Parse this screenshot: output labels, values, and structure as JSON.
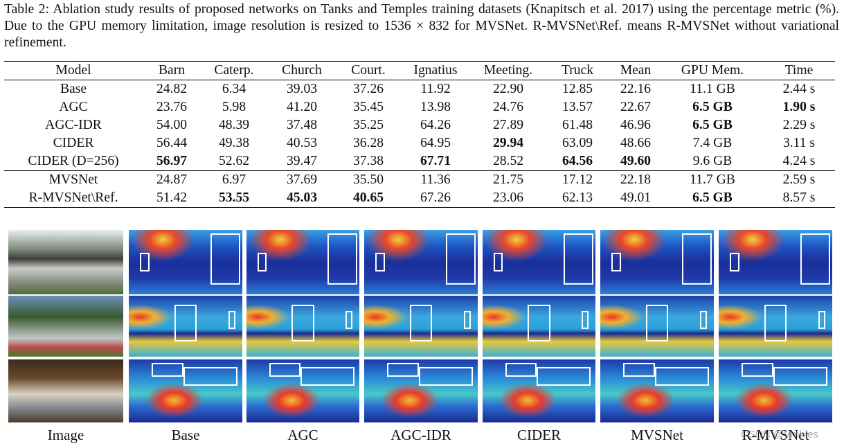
{
  "caption": "Table 2: Ablation study results of proposed networks on Tanks and Temples training datasets (Knapitsch et al. 2017) using the percentage metric (%). Due to the GPU memory limitation, image resolution is resized to 1536 × 832 for MVSNet. R-MVSNet\\Ref. means R-MVSNet without variational refinement.",
  "table": {
    "header": [
      "Model",
      "Barn",
      "Caterp.",
      "Church",
      "Court.",
      "Ignatius",
      "Meeting.",
      "Truck",
      "Mean",
      "GPU Mem.",
      "Time"
    ],
    "rows": [
      [
        "Base",
        "24.82",
        "6.34",
        "39.03",
        "37.26",
        "11.92",
        "22.90",
        "12.85",
        "22.16",
        "11.1 GB",
        "2.44 s"
      ],
      [
        "AGC",
        "23.76",
        "5.98",
        "41.20",
        "35.45",
        "13.98",
        "24.76",
        "13.57",
        "22.67",
        "6.5 GB",
        "1.90 s"
      ],
      [
        "AGC-IDR",
        "54.00",
        "48.39",
        "37.48",
        "35.25",
        "64.26",
        "27.89",
        "61.48",
        "46.96",
        "6.5 GB",
        "2.29 s"
      ],
      [
        "CIDER",
        "56.44",
        "49.38",
        "40.53",
        "36.28",
        "64.95",
        "29.94",
        "63.09",
        "48.66",
        "7.4 GB",
        "3.11 s"
      ],
      [
        "CIDER (D=256)",
        "56.97",
        "52.62",
        "39.47",
        "37.38",
        "67.71",
        "28.52",
        "64.56",
        "49.60",
        "9.6 GB",
        "4.24 s"
      ],
      [
        "MVSNet",
        "24.87",
        "6.97",
        "37.69",
        "35.50",
        "11.36",
        "21.75",
        "17.12",
        "22.18",
        "11.7 GB",
        "2.59 s"
      ],
      [
        "R-MVSNet\\Ref.",
        "51.42",
        "53.55",
        "45.03",
        "40.65",
        "67.26",
        "23.06",
        "62.13",
        "49.01",
        "6.5 GB",
        "8.57 s"
      ]
    ],
    "bold": [
      [],
      [
        9,
        10
      ],
      [
        9
      ],
      [
        6
      ],
      [
        1,
        5,
        7,
        8
      ],
      [],
      [
        2,
        3,
        4,
        9
      ]
    ],
    "separator_before_row": 5
  },
  "figure_labels": [
    "Image",
    "Base",
    "AGC",
    "AGC-IDR",
    "CIDER",
    "MVSNet",
    "R-MVSNet"
  ],
  "watermark": "CSDN @Vmhles"
}
